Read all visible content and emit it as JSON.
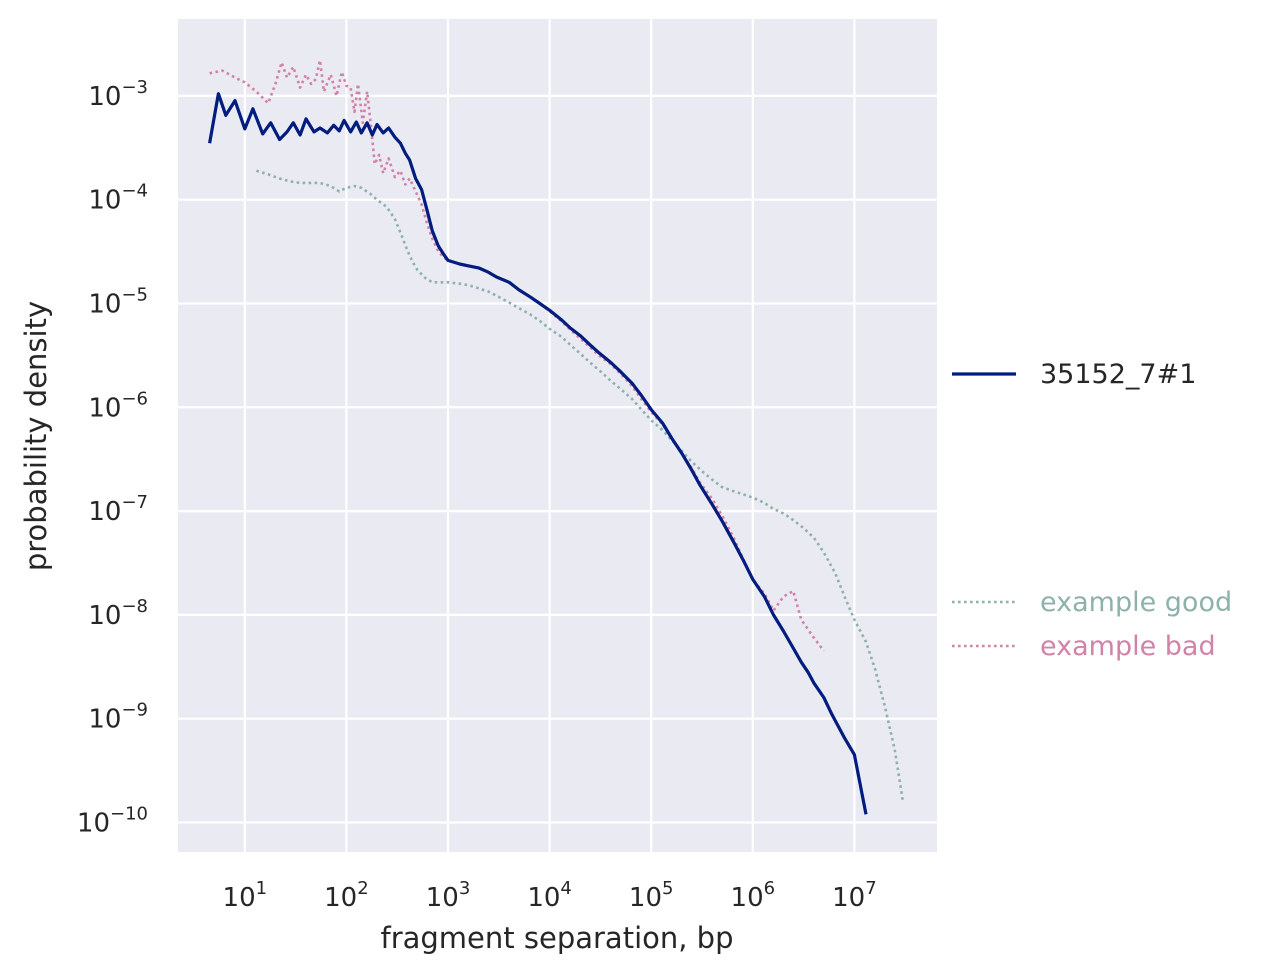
{
  "chart_data": {
    "type": "line",
    "xscale": "log",
    "yscale": "log",
    "xlabel": "fragment separation, bp",
    "ylabel": "probability density",
    "xlim": [
      2.2,
      65000000
    ],
    "ylim": [
      5.2e-11,
      0.0055
    ],
    "grid": true,
    "x_ticks": [
      {
        "value": 10,
        "base": "10",
        "exp": "1"
      },
      {
        "value": 100,
        "base": "10",
        "exp": "2"
      },
      {
        "value": 1000,
        "base": "10",
        "exp": "3"
      },
      {
        "value": 10000,
        "base": "10",
        "exp": "4"
      },
      {
        "value": 100000,
        "base": "10",
        "exp": "5"
      },
      {
        "value": 1000000,
        "base": "10",
        "exp": "6"
      },
      {
        "value": 10000000,
        "base": "10",
        "exp": "7"
      }
    ],
    "y_ticks": [
      {
        "value": 0.001,
        "base": "10",
        "exp": "−3"
      },
      {
        "value": 0.0001,
        "base": "10",
        "exp": "−4"
      },
      {
        "value": 1e-05,
        "base": "10",
        "exp": "−5"
      },
      {
        "value": 1e-06,
        "base": "10",
        "exp": "−6"
      },
      {
        "value": 1e-07,
        "base": "10",
        "exp": "−7"
      },
      {
        "value": 1e-08,
        "base": "10",
        "exp": "−8"
      },
      {
        "value": 1e-09,
        "base": "10",
        "exp": "−9"
      },
      {
        "value": 1e-10,
        "base": "10",
        "exp": "−10"
      }
    ],
    "series": [
      {
        "name": "35152_7#1",
        "color": "#001c7f",
        "style": "solid",
        "legend_group": "top",
        "x": [
          4.5,
          5.5,
          6.5,
          8,
          10,
          12,
          15,
          18,
          22,
          26,
          30,
          35,
          40,
          48,
          55,
          65,
          75,
          85,
          95,
          110,
          125,
          140,
          160,
          180,
          200,
          230,
          260,
          300,
          340,
          380,
          420,
          480,
          550,
          620,
          700,
          800,
          900,
          1000,
          1300,
          1600,
          2000,
          2500,
          3000,
          4000,
          5000,
          6500,
          8000,
          10000,
          13000,
          16000,
          20000,
          25000,
          30000,
          40000,
          50000,
          65000,
          80000,
          100000,
          130000,
          160000,
          200000,
          250000,
          300000,
          400000,
          500000,
          650000,
          800000,
          1000000,
          1300000,
          1600000,
          2000000,
          2500000,
          3000000,
          3500000,
          4000000,
          5000000,
          6000000,
          8000000,
          10000000,
          13000000
        ],
        "y": [
          0.00035,
          0.00105,
          0.00065,
          0.0009,
          0.00048,
          0.00075,
          0.00043,
          0.00055,
          0.00038,
          0.00045,
          0.00055,
          0.00042,
          0.0006,
          0.00045,
          0.00049,
          0.00044,
          0.00052,
          0.00046,
          0.00058,
          0.00045,
          0.00056,
          0.00044,
          0.00055,
          0.00042,
          0.00053,
          0.00044,
          0.00049,
          0.0004,
          0.00035,
          0.00028,
          0.00024,
          0.00016,
          0.000125,
          8e-05,
          5e-05,
          3.6e-05,
          3e-05,
          2.6e-05,
          2.4e-05,
          2.3e-05,
          2.2e-05,
          2e-05,
          1.8e-05,
          1.6e-05,
          1.35e-05,
          1.15e-05,
          1e-05,
          8.6e-06,
          7e-06,
          5.8e-06,
          4.9e-06,
          4e-06,
          3.4e-06,
          2.7e-06,
          2.2e-06,
          1.7e-06,
          1.3e-06,
          9.5e-07,
          7e-07,
          5e-07,
          3.6e-07,
          2.5e-07,
          1.8e-07,
          1.15e-07,
          8e-08,
          5e-08,
          3.4e-08,
          2.2e-08,
          1.5e-08,
          1e-08,
          7e-09,
          4.8e-09,
          3.5e-09,
          2.8e-09,
          2.2e-09,
          1.6e-09,
          1.1e-09,
          6.5e-10,
          4.5e-10,
          1.2e-10
        ]
      },
      {
        "name": "example good",
        "color": "#8fb1ab",
        "style": "dotted",
        "legend_group": "bottom",
        "x": [
          13,
          17,
          22,
          28,
          35,
          45,
          55,
          70,
          85,
          100,
          120,
          140,
          170,
          200,
          250,
          300,
          350,
          400,
          450,
          500,
          600,
          700,
          800,
          1000,
          1300,
          1600,
          2000,
          2500,
          3200,
          4000,
          5000,
          6500,
          8000,
          10000,
          13000,
          16000,
          20000,
          25000,
          32000,
          40000,
          50000,
          65000,
          80000,
          100000,
          130000,
          160000,
          200000,
          250000,
          320000,
          400000,
          500000,
          650000,
          800000,
          1000000,
          1300000,
          1600000,
          2000000,
          2500000,
          3200000,
          4000000,
          5000000,
          6500000,
          8000000,
          10000000,
          13000000,
          16000000,
          20000000,
          25000000,
          30000000
        ],
        "y": [
          0.00019,
          0.000175,
          0.00016,
          0.00015,
          0.000145,
          0.000145,
          0.000145,
          0.000135,
          0.00012,
          0.00013,
          0.000135,
          0.00013,
          0.000115,
          0.0001,
          8.5e-05,
          6.5e-05,
          4.5e-05,
          3.2e-05,
          2.5e-05,
          2.1e-05,
          1.75e-05,
          1.6e-05,
          1.6e-05,
          1.6e-05,
          1.55e-05,
          1.5e-05,
          1.4e-05,
          1.3e-05,
          1.15e-05,
          1.02e-05,
          9e-06,
          7.8e-06,
          6.8e-06,
          5.7e-06,
          4.8e-06,
          4e-06,
          3.3e-06,
          2.7e-06,
          2.2e-06,
          1.8e-06,
          1.5e-06,
          1.2e-06,
          9.5e-07,
          7.5e-07,
          6e-07,
          4.8e-07,
          3.8e-07,
          3e-07,
          2.4e-07,
          2e-07,
          1.7e-07,
          1.55e-07,
          1.45e-07,
          1.35e-07,
          1.2e-07,
          1.05e-07,
          9.5e-08,
          8.2e-08,
          6.8e-08,
          5.5e-08,
          4e-08,
          2.5e-08,
          1.5e-08,
          9e-09,
          5.5e-09,
          3e-09,
          1.3e-09,
          5e-10,
          1.6e-10
        ]
      },
      {
        "name": "example bad",
        "color": "#d282a8",
        "style": "dotted",
        "legend_group": "bottom",
        "x": [
          4.5,
          6,
          8,
          10,
          13,
          17,
          20,
          23,
          26,
          30,
          35,
          40,
          45,
          50,
          55,
          60,
          70,
          80,
          90,
          100,
          110,
          120,
          130,
          145,
          160,
          175,
          190,
          210,
          230,
          260,
          300,
          340,
          380,
          420,
          480,
          550,
          620,
          700,
          800,
          900,
          1000,
          1300,
          1600,
          2000,
          2500,
          3000,
          4000,
          5000,
          6500,
          8000,
          10000,
          13000,
          16000,
          20000,
          25000,
          30000,
          40000,
          50000,
          65000,
          80000,
          100000,
          130000,
          160000,
          200000,
          250000,
          300000,
          400000,
          500000,
          650000,
          800000,
          1000000,
          1300000,
          1600000,
          2000000,
          2500000,
          3000000,
          4000000,
          5000000
        ],
        "y": [
          0.00165,
          0.00175,
          0.0015,
          0.00135,
          0.0011,
          0.00085,
          0.0013,
          0.0021,
          0.0015,
          0.0019,
          0.0012,
          0.0016,
          0.0013,
          0.00145,
          0.0022,
          0.0011,
          0.0016,
          0.001,
          0.0017,
          0.00125,
          0.0012,
          0.0007,
          0.0013,
          0.00055,
          0.0011,
          0.0005,
          0.00022,
          0.00027,
          0.00018,
          0.00025,
          0.000165,
          0.00019,
          0.00014,
          0.00016,
          0.00012,
          9e-05,
          6e-05,
          4.2e-05,
          3.2e-05,
          2.8e-05,
          2.6e-05,
          2.4e-05,
          2.3e-05,
          2.2e-05,
          2e-05,
          1.8e-05,
          1.6e-05,
          1.35e-05,
          1.15e-05,
          1e-05,
          8.4e-06,
          6.8e-06,
          5.6e-06,
          4.6e-06,
          3.8e-06,
          3.2e-06,
          2.6e-06,
          2.1e-06,
          1.6e-06,
          1.2e-06,
          9e-07,
          6.8e-07,
          5e-07,
          3.6e-07,
          2.6e-07,
          1.9e-07,
          1.3e-07,
          9e-08,
          5.5e-08,
          3.5e-08,
          2.2e-08,
          1.6e-08,
          1.1e-08,
          1.5e-08,
          1.7e-08,
          9e-09,
          6e-09,
          4.5e-09
        ]
      }
    ]
  }
}
